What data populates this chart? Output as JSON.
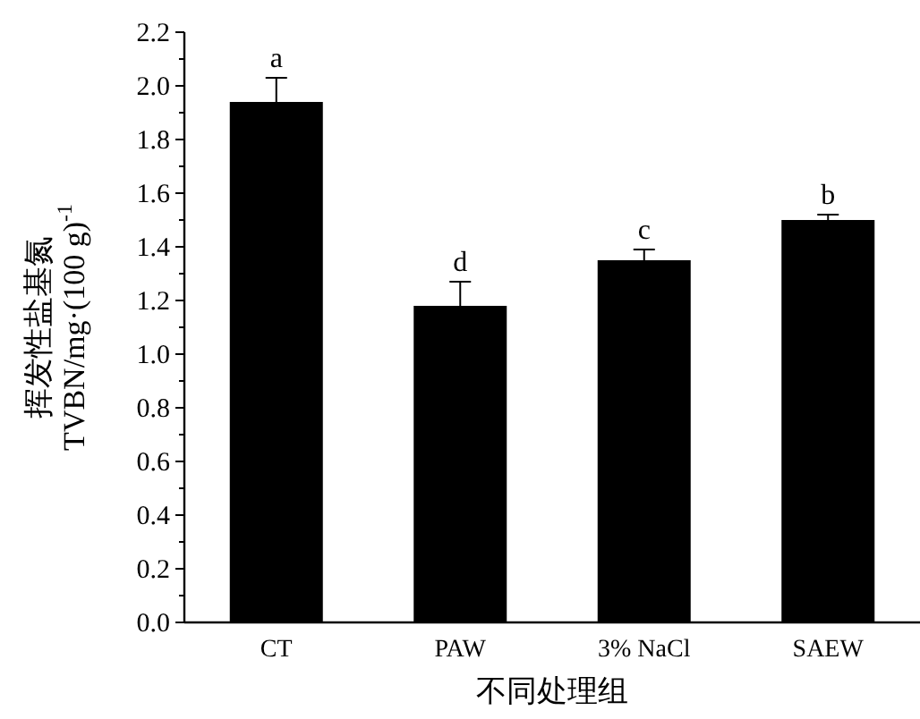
{
  "chart_data": {
    "type": "bar",
    "xlabel": "不同处理组",
    "ylabel": "挥发性盐基氮 TVBN/mg·(100 g)$^{-1}$",
    "categories": [
      "CT",
      "PAW",
      "3% NaCl",
      "SAEW"
    ],
    "values": [
      1.94,
      1.18,
      1.35,
      1.5
    ],
    "errors": [
      0.09,
      0.09,
      0.04,
      0.02
    ],
    "color": "#000000",
    "ylim": [
      0,
      2.2
    ],
    "yticks": [
      {
        "value": 0,
        "label": "0.0"
      },
      0.2,
      0.4,
      0.6,
      0.8,
      {
        "value": 1,
        "label": "1.0"
      },
      1.2,
      1.4,
      1.6,
      1.8,
      {
        "value": 2,
        "label": "2.0"
      },
      2.2
    ],
    "annotations": [
      {
        "text": "a",
        "x": "CT",
        "y": 2.03
      },
      {
        "text": "d",
        "x": "PAW",
        "y": 1.27
      },
      {
        "text": "c",
        "x": "3% NaCl",
        "y": 1.39
      },
      {
        "text": "b",
        "x": "SAEW",
        "y": 1.52
      }
    ]
  }
}
